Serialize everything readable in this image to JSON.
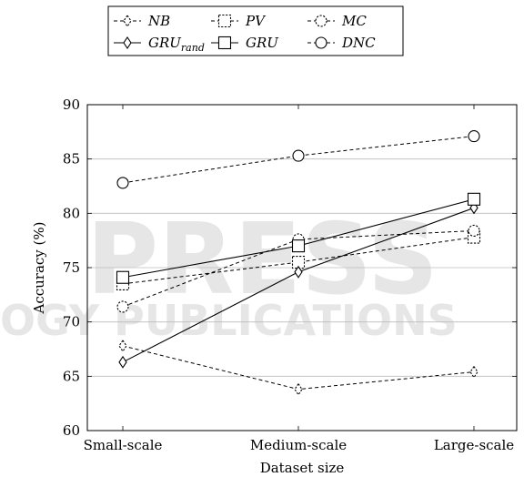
{
  "watermark": {
    "large": "PRESS",
    "small": "OGY PUBLICATIONS"
  },
  "chart_data": {
    "type": "line",
    "title": "",
    "xlabel": "Dataset size",
    "ylabel": "Accuracy (%)",
    "categories": [
      "Small-scale",
      "Medium-scale",
      "Large-scale"
    ],
    "ylim": [
      60,
      90
    ],
    "yticks": [
      60,
      65,
      70,
      75,
      80,
      85,
      90
    ],
    "grid": "horizontal",
    "legend_position": "top",
    "series": [
      {
        "name": "NB",
        "name_sub": "",
        "marker": "diamond",
        "line": "dashed",
        "values": [
          67.8,
          63.8,
          65.4
        ]
      },
      {
        "name": "PV",
        "name_sub": "",
        "marker": "square",
        "line": "dashed",
        "values": [
          73.5,
          75.5,
          77.8
        ]
      },
      {
        "name": "MC",
        "name_sub": "",
        "marker": "circle",
        "line": "dashed",
        "values": [
          71.4,
          77.6,
          78.4
        ]
      },
      {
        "name": "GRU",
        "name_sub": "rand",
        "marker": "diamond",
        "line": "solid",
        "values": [
          66.3,
          74.6,
          80.5
        ]
      },
      {
        "name": "GRU",
        "name_sub": "",
        "marker": "square",
        "line": "solid",
        "values": [
          74.1,
          77.0,
          81.3
        ]
      },
      {
        "name": "DNC",
        "name_sub": "",
        "marker": "circle",
        "line": "dashed",
        "values": [
          82.8,
          85.3,
          87.1
        ]
      }
    ]
  }
}
